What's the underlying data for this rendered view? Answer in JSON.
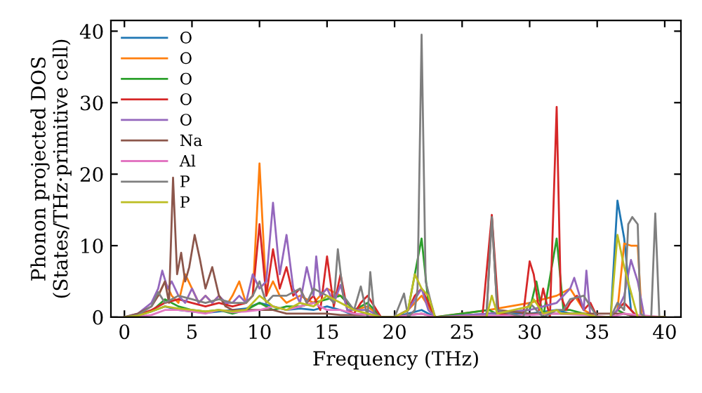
{
  "chart_data": {
    "type": "line",
    "xlabel": "Frequency (THz)",
    "ylabel": "Phonon projected DOS\n(States/THz·primitive cell)",
    "xlim": [
      -1,
      41.2
    ],
    "ylim": [
      0,
      41.5
    ],
    "xticks": [
      0,
      5,
      10,
      15,
      20,
      25,
      30,
      35,
      40
    ],
    "yticks": [
      0,
      10,
      20,
      30,
      40
    ],
    "grid": false,
    "legend": "top left",
    "marker": "none",
    "line_style": "solid",
    "series": [
      {
        "name": "O",
        "color": "#1f77b4",
        "x": [
          2,
          3,
          4,
          5,
          6,
          7,
          8,
          9,
          10,
          11,
          12,
          13,
          14,
          15,
          16,
          17,
          18,
          19,
          20,
          21,
          22,
          23,
          27,
          30,
          32,
          33,
          34,
          35,
          36,
          36.5,
          37,
          37.5,
          38,
          40
        ],
        "values": [
          0.8,
          1.5,
          1,
          0.8,
          0.6,
          0.8,
          1,
          1.2,
          2,
          1.5,
          1,
          1.2,
          1,
          1.5,
          1,
          0.3,
          0.5,
          0,
          0,
          0.5,
          1,
          0,
          0.5,
          0.5,
          1,
          0.5,
          0.5,
          0,
          0,
          16.3,
          11,
          1,
          0,
          0
        ]
      },
      {
        "name": "O",
        "color": "#ff7f0e",
        "x": [
          2.5,
          3,
          3.5,
          4,
          4.5,
          5,
          5.5,
          6,
          6.5,
          7,
          7.5,
          8,
          8.5,
          9,
          9.5,
          10,
          10.5,
          11,
          11.5,
          12,
          13,
          14,
          15,
          16,
          17,
          18,
          19,
          20,
          21,
          22,
          23,
          27,
          30,
          32,
          33,
          34,
          35,
          36,
          36.5,
          37,
          37.5,
          38,
          38.3,
          40
        ],
        "values": [
          3,
          5,
          3,
          2,
          6,
          4,
          2,
          3,
          2,
          3,
          1.5,
          3,
          5,
          2,
          3,
          21.5,
          3,
          5,
          3,
          2,
          3,
          2,
          4,
          3,
          1,
          1.5,
          0,
          0,
          1,
          3,
          0,
          1,
          2,
          3,
          4,
          1,
          0,
          0,
          1,
          10.3,
          10,
          10,
          0,
          0
        ]
      },
      {
        "name": "O",
        "color": "#2ca02c",
        "x": [
          0,
          1,
          2,
          3,
          4,
          5,
          6,
          7,
          8,
          9,
          10,
          11,
          12,
          13,
          14,
          15,
          16,
          17,
          18,
          19,
          20,
          21,
          22,
          22.5,
          23,
          27,
          27.5,
          30,
          30.5,
          31,
          32,
          32.5,
          33,
          34,
          35,
          36,
          36.5,
          37,
          38,
          40
        ],
        "values": [
          0,
          0.2,
          0.8,
          2.5,
          1.5,
          1,
          0.8,
          1,
          0.5,
          1,
          2,
          1,
          1.5,
          1.5,
          2,
          2.5,
          3,
          1,
          2,
          0,
          0,
          1,
          11,
          2,
          0,
          1,
          0.5,
          1,
          5,
          0,
          11,
          1,
          1,
          0.5,
          0,
          0,
          1,
          0.5,
          0,
          0
        ]
      },
      {
        "name": "O",
        "color": "#d62728",
        "x": [
          0,
          1,
          2,
          3,
          4,
          5,
          6,
          7,
          8,
          9,
          9.5,
          10,
          10.5,
          11,
          11.5,
          12,
          12.5,
          13,
          13.5,
          14,
          14.5,
          15,
          15.5,
          16,
          16.5,
          17,
          17.5,
          18,
          19,
          20,
          21,
          21.5,
          22,
          22.5,
          23,
          26.5,
          27.2,
          27.7,
          29.5,
          30,
          30.3,
          30.7,
          31,
          31.5,
          32,
          32.3,
          32.7,
          33,
          33.5,
          34,
          34.5,
          35,
          36,
          36.5,
          37,
          37.5,
          38,
          40
        ],
        "values": [
          0,
          0.3,
          1,
          2,
          2.5,
          2,
          1.5,
          2,
          1.5,
          2,
          3,
          13,
          3,
          9.5,
          4,
          7,
          3,
          4,
          2,
          3,
          1,
          8.5,
          1.5,
          6,
          1,
          0.5,
          2,
          3,
          0,
          0,
          1,
          3,
          4,
          2,
          0,
          0,
          14.3,
          0.5,
          0,
          7.8,
          6,
          1,
          4,
          0,
          29.4,
          3,
          1,
          2,
          3,
          1,
          2,
          0,
          0,
          1,
          2,
          1,
          0,
          0
        ]
      },
      {
        "name": "O",
        "color": "#9467bd",
        "x": [
          0,
          1,
          2,
          2.5,
          2.8,
          3.2,
          3.5,
          4,
          4.5,
          5,
          5.5,
          6,
          6.5,
          7,
          7.5,
          8,
          8.5,
          9,
          9.5,
          10,
          10.5,
          11,
          11.5,
          12,
          12.5,
          13,
          13.5,
          14,
          14.2,
          14.5,
          15,
          15.5,
          16,
          16.5,
          17,
          17.5,
          18,
          19,
          20,
          21,
          22,
          22.5,
          23,
          27,
          30,
          32,
          33,
          33.3,
          33.7,
          34,
          34.2,
          34.5,
          35,
          36,
          36.5,
          37,
          37.5,
          38,
          38.5,
          40
        ],
        "values": [
          0,
          0.5,
          2,
          4,
          6.5,
          4,
          5,
          3,
          2,
          4,
          2,
          3,
          2,
          3,
          2,
          2,
          3,
          2,
          6,
          4,
          5,
          16,
          6,
          11.5,
          4,
          2,
          7,
          3,
          8.5,
          3,
          4,
          2,
          4.5,
          1,
          1,
          1,
          1,
          0,
          0,
          1,
          4,
          1,
          0,
          0.5,
          1,
          2,
          4,
          5.5,
          3,
          1,
          6.5,
          0,
          0,
          0,
          1,
          3,
          8,
          5,
          0,
          0
        ]
      },
      {
        "name": "Na",
        "color": "#8c564b",
        "x": [
          0,
          1,
          2,
          2.5,
          3,
          3.3,
          3.6,
          3.9,
          4.2,
          4.5,
          4.8,
          5.2,
          5.6,
          6,
          6.5,
          7,
          7.5,
          8,
          9,
          10,
          11,
          12,
          13,
          14,
          15,
          16,
          17,
          18,
          19,
          20,
          21,
          22,
          23,
          26.8,
          27.2,
          27.6,
          30,
          32,
          37,
          38,
          40
        ],
        "values": [
          0,
          0.5,
          1.5,
          3,
          5,
          2,
          19.5,
          6,
          9,
          5,
          7,
          11.5,
          8,
          4,
          7,
          3,
          1.5,
          1,
          1,
          1,
          1,
          0.5,
          0.5,
          0.5,
          0.5,
          0.3,
          0.3,
          0.3,
          0,
          0,
          0.3,
          0.5,
          0,
          0,
          14,
          1,
          0.5,
          0.5,
          0.5,
          0,
          0
        ]
      },
      {
        "name": "Al",
        "color": "#e377c2",
        "x": [
          0,
          1,
          2,
          3,
          4,
          5,
          6,
          7,
          8,
          9,
          10,
          11,
          12,
          13,
          14,
          15,
          16,
          17,
          18,
          19,
          20,
          22,
          23,
          27,
          30,
          32,
          34,
          36,
          37,
          38,
          40
        ],
        "values": [
          0,
          0.1,
          0.3,
          1,
          1,
          0.8,
          0.5,
          1,
          0.7,
          0.8,
          1,
          1.5,
          1,
          1.5,
          2,
          1,
          1,
          0.5,
          0.3,
          0,
          0,
          0.5,
          0,
          0.2,
          0.3,
          0.5,
          0.3,
          0,
          0.5,
          0.3,
          0
        ]
      },
      {
        "name": "P",
        "color": "#7f7f7f",
        "x": [
          0,
          1,
          2,
          2.5,
          3,
          4,
          5,
          6,
          7,
          8,
          9,
          9.5,
          10,
          10.5,
          11,
          12,
          13,
          13.5,
          14,
          15,
          15.5,
          15.8,
          16.2,
          17,
          17.5,
          18,
          18.2,
          18.5,
          19,
          20,
          20.7,
          21,
          21.5,
          21.7,
          22,
          22.3,
          22.7,
          23,
          26.8,
          27.2,
          27.6,
          29.5,
          30,
          30.5,
          31,
          32,
          32.5,
          33,
          34,
          35,
          36,
          36.5,
          37,
          37.3,
          37.6,
          38,
          38.2,
          38.6,
          39,
          39.3,
          39.6,
          40
        ],
        "values": [
          0,
          0.3,
          1.5,
          3.5,
          2,
          3,
          2.5,
          2,
          2.5,
          2,
          2,
          3,
          5,
          2,
          3,
          3,
          4,
          2,
          4,
          3,
          2,
          9.5,
          3,
          1,
          4.3,
          0,
          6.3,
          0.5,
          0,
          0,
          3.3,
          0,
          1,
          4,
          39.5,
          5,
          2,
          0,
          0,
          14,
          1,
          0,
          2,
          1,
          0,
          1,
          1,
          2.5,
          3,
          0,
          0,
          2,
          1,
          13,
          14,
          13,
          0.5,
          0,
          0,
          14.5,
          0,
          0
        ]
      },
      {
        "name": "P",
        "color": "#bcbd22",
        "x": [
          0,
          1,
          2,
          3,
          4,
          5,
          6,
          7,
          8,
          9,
          10,
          11,
          12,
          13,
          14,
          15,
          16,
          17,
          18,
          19,
          20,
          21,
          21.5,
          22,
          22.5,
          23,
          26.8,
          27.2,
          27.6,
          30,
          30.3,
          31,
          32,
          32.3,
          33,
          34,
          35,
          36,
          36.5,
          37,
          38,
          40
        ],
        "values": [
          0,
          0.2,
          0.8,
          1.5,
          1.2,
          1,
          0.8,
          1,
          0.8,
          1,
          3,
          1.5,
          1,
          2,
          1.5,
          3,
          2,
          1,
          0.5,
          0,
          0,
          1,
          6,
          4,
          3,
          0,
          0,
          3,
          0.5,
          1.5,
          2.5,
          0.5,
          1,
          0.5,
          0.5,
          0.5,
          0,
          0,
          11.5,
          7,
          0,
          0
        ]
      }
    ]
  }
}
